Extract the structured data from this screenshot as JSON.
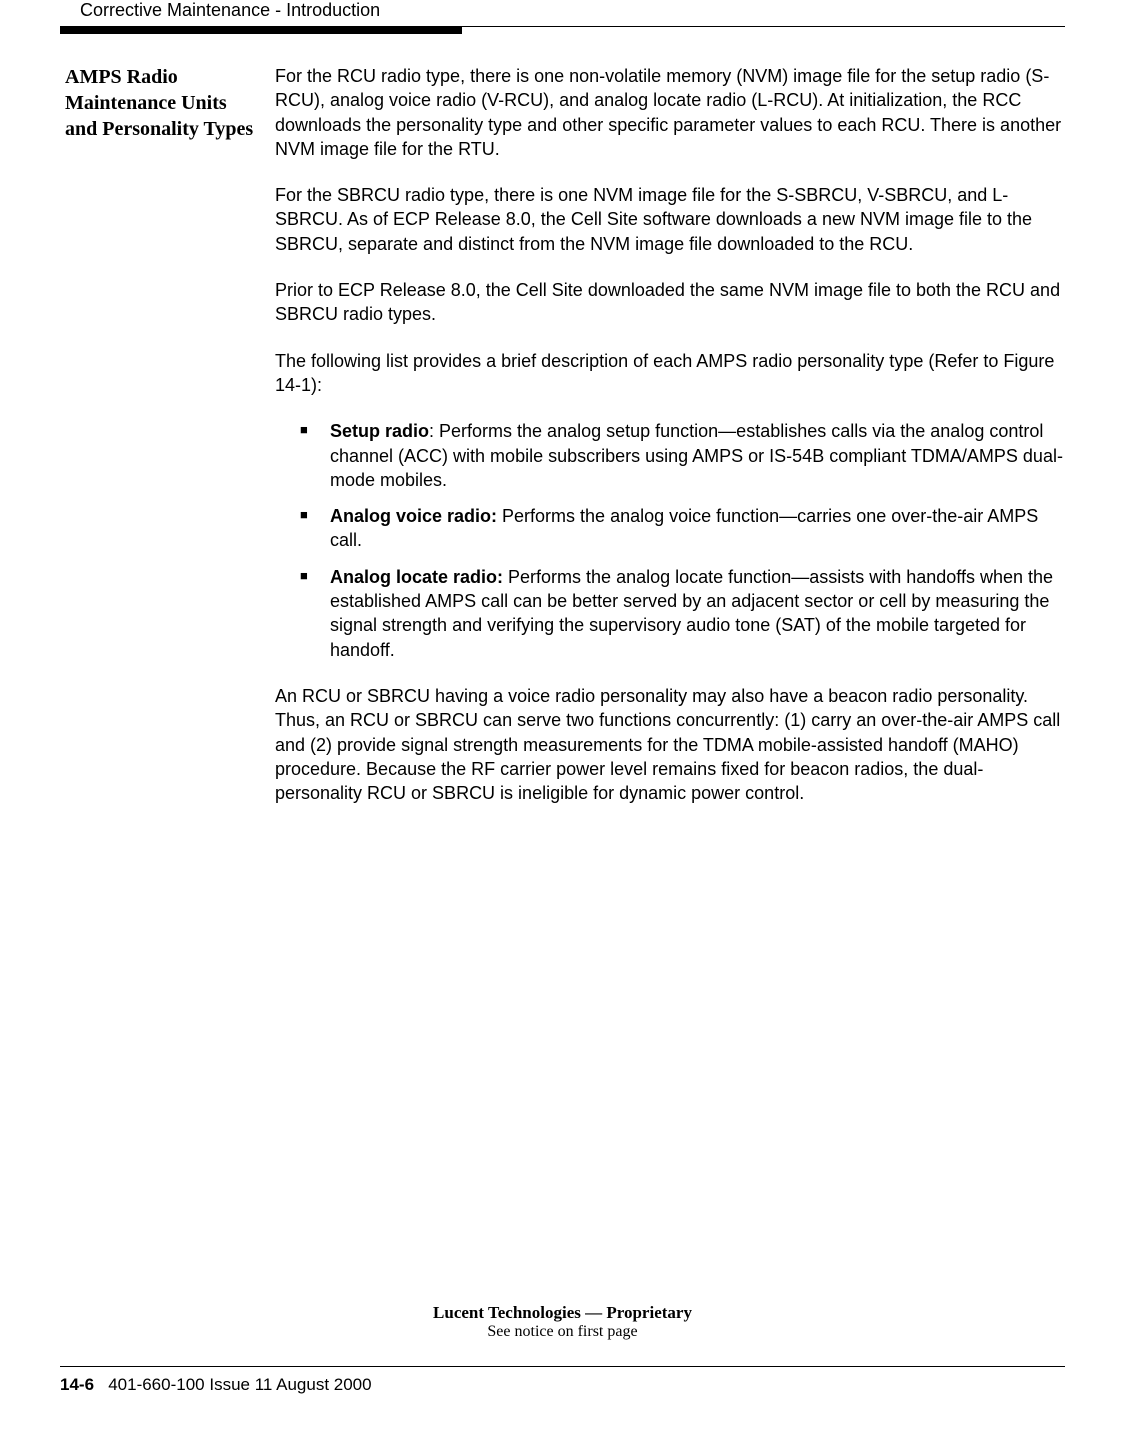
{
  "header": {
    "title": "Corrective Maintenance - Introduction"
  },
  "sidebar": {
    "heading": "AMPS Radio Maintenance Units and Personality Types"
  },
  "body": {
    "p1": "For the RCU radio type, there is one non-volatile memory (NVM) image file for the setup radio (S-RCU), analog voice radio (V-RCU), and analog locate radio (L-RCU). At initialization, the RCC downloads the personality type and other specific parameter values to each RCU. There is another NVM image file for the RTU.",
    "p2": "For the SBRCU radio type, there is one NVM image file for the S-SBRCU, V-SBRCU, and L-SBRCU. As of ECP Release 8.0, the Cell Site software downloads a new NVM image file to the SBRCU, separate and distinct from the NVM image file downloaded to the RCU.",
    "p3": "Prior to ECP Release 8.0, the Cell Site downloaded the same NVM image file to both the RCU and SBRCU radio types.",
    "p4": "The following list provides a brief description of each AMPS radio personality type (Refer to Figure 14-1):",
    "bullets": {
      "b1_bold": "Setup radio",
      "b1_text": ": Performs the analog setup function—establishes calls via the analog control channel (ACC) with mobile subscribers using AMPS or IS-54B compliant TDMA/AMPS dual-mode mobiles.",
      "b2_bold": "Analog voice radio:",
      "b2_text": " Performs the analog voice function—carries one over-the-air AMPS call.",
      "b3_bold": "Analog locate radio:",
      "b3_text": " Performs the analog locate function—assists with handoffs when the established AMPS call can be better served by an adjacent sector or cell by measuring the signal strength and verifying the supervisory audio tone (SAT) of the mobile targeted for handoff."
    },
    "p5": "An RCU or SBRCU having a voice radio personality may also have a beacon radio personality. Thus, an RCU or SBRCU can serve two functions concurrently: (1) carry an over-the-air AMPS call and (2) provide signal strength measurements for the TDMA mobile-assisted handoff (MAHO) procedure. Because the RF carrier power level remains fixed for beacon radios, the dual-personality RCU or SBRCU is ineligible for dynamic power control."
  },
  "footer": {
    "proprietary_line1": "Lucent Technologies — Proprietary",
    "proprietary_line2": "See notice on first page",
    "page_num": "14-6",
    "doc_info": "401-660-100 Issue 11    August 2000"
  }
}
